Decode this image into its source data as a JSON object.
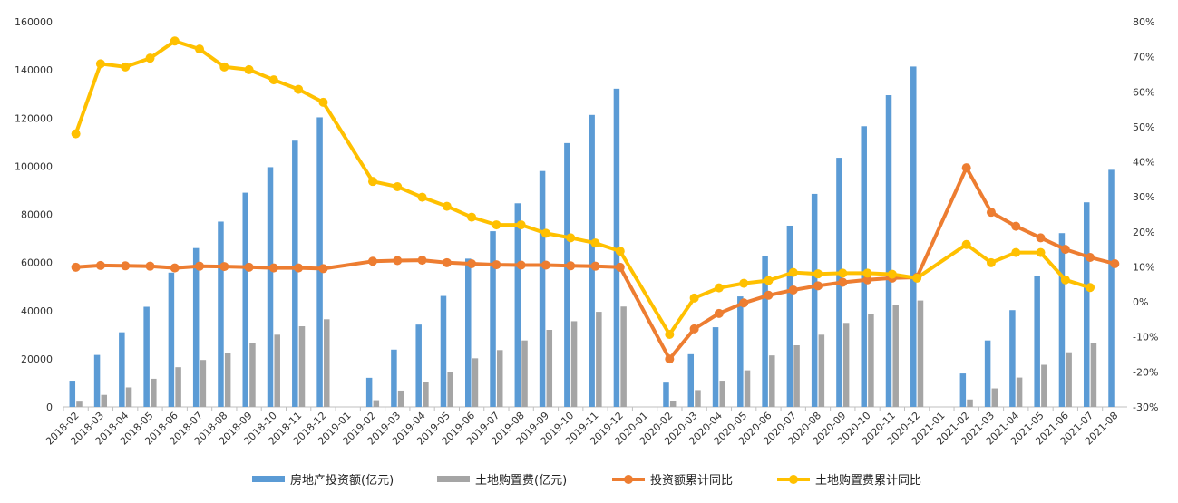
{
  "chart_data": {
    "type": "bar+line",
    "title": "",
    "categories": [
      "2018-02",
      "2018-03",
      "2018-04",
      "2018-05",
      "2018-06",
      "2018-07",
      "2018-08",
      "2018-09",
      "2018-10",
      "2018-11",
      "2018-12",
      "2019-01",
      "2019-02",
      "2019-03",
      "2019-04",
      "2019-05",
      "2019-06",
      "2019-07",
      "2019-08",
      "2019-09",
      "2019-10",
      "2019-11",
      "2019-12",
      "2020-01",
      "2020-02",
      "2020-03",
      "2020-04",
      "2020-05",
      "2020-06",
      "2020-07",
      "2020-08",
      "2020-09",
      "2020-10",
      "2020-11",
      "2020-12",
      "2021-01",
      "2021-02",
      "2021-03",
      "2021-04",
      "2021-05",
      "2021-06",
      "2021-07",
      "2021-08"
    ],
    "y_left": {
      "min": 0,
      "max": 160000,
      "ticks": [
        "0",
        "20000",
        "40000",
        "60000",
        "80000",
        "100000",
        "120000",
        "140000",
        "160000"
      ]
    },
    "y_right": {
      "min": -30,
      "max": 80,
      "ticks": [
        "-30%",
        "-20%",
        "-10%",
        "0%",
        "10%",
        "20%",
        "30%",
        "40%",
        "50%",
        "60%",
        "70%",
        "80%"
      ]
    },
    "grid": false,
    "legend_position": "bottom",
    "series": [
      {
        "name": "房地产投资额(亿元)",
        "kind": "bar",
        "axis": "left",
        "color": "#5B9BD5",
        "values": [
          10900,
          21600,
          31000,
          41600,
          55800,
          66000,
          77000,
          89000,
          99600,
          110600,
          120300,
          null,
          12100,
          23800,
          34200,
          46100,
          61600,
          73000,
          84600,
          98000,
          109600,
          121300,
          132200,
          null,
          10100,
          21900,
          33100,
          45900,
          62800,
          75300,
          88500,
          103500,
          116600,
          129500,
          141400,
          null,
          13900,
          27600,
          40200,
          54500,
          72200,
          85000,
          98500
        ]
      },
      {
        "name": "土地购置费(亿元)",
        "kind": "bar",
        "axis": "left",
        "color": "#A5A5A5",
        "values": [
          2200,
          5000,
          8100,
          11700,
          16500,
          19500,
          22500,
          26500,
          30000,
          33500,
          36400,
          null,
          2800,
          6800,
          10300,
          14600,
          20200,
          23600,
          27600,
          32000,
          35600,
          39500,
          41700,
          null,
          2400,
          7000,
          10900,
          15200,
          21400,
          25600,
          30000,
          34900,
          38700,
          42300,
          44200,
          null,
          3100,
          7700,
          12200,
          17500,
          22700,
          26500,
          null
        ]
      },
      {
        "name": "投资额累计同比",
        "kind": "line",
        "axis": "right",
        "color": "#ED7D31",
        "values": [
          9.9,
          10.4,
          10.3,
          10.2,
          9.7,
          10.2,
          10.1,
          9.9,
          9.7,
          9.7,
          9.5,
          null,
          11.6,
          11.8,
          11.9,
          11.2,
          10.9,
          10.6,
          10.5,
          10.5,
          10.3,
          10.2,
          9.9,
          null,
          -16.3,
          -7.7,
          -3.3,
          -0.3,
          1.9,
          3.4,
          4.6,
          5.6,
          6.3,
          6.8,
          7.0,
          null,
          38.3,
          25.6,
          21.6,
          18.3,
          15.0,
          12.7,
          10.9
        ]
      },
      {
        "name": "土地购置费累计同比",
        "kind": "line",
        "axis": "right",
        "color": "#FFC000",
        "values": [
          48.0,
          68.0,
          67.1,
          69.6,
          74.5,
          72.2,
          67.1,
          66.3,
          63.4,
          60.7,
          57.0,
          null,
          34.4,
          32.9,
          29.9,
          27.3,
          24.2,
          22.0,
          22.0,
          19.6,
          18.3,
          16.8,
          14.5,
          null,
          -9.3,
          1.1,
          4.0,
          5.3,
          6.1,
          8.4,
          8.0,
          8.2,
          8.2,
          7.9,
          6.8,
          null,
          16.4,
          11.2,
          14.1,
          14.1,
          6.3,
          4.1,
          null
        ]
      }
    ]
  }
}
